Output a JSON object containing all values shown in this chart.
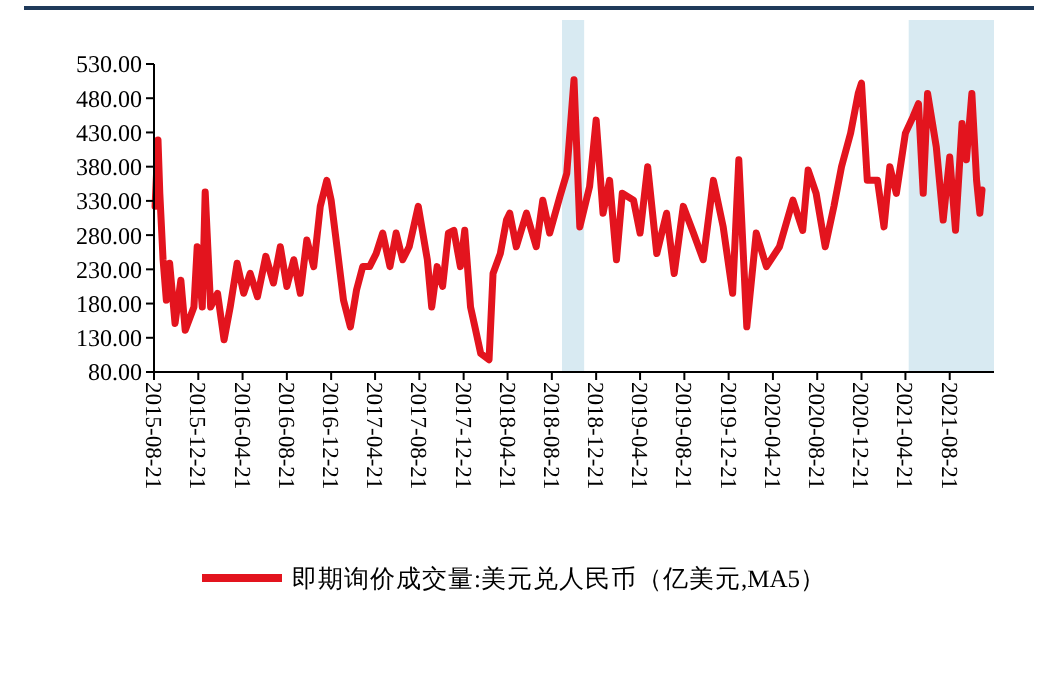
{
  "chart_data": {
    "type": "line",
    "x": [
      "2015-08-24",
      "2015-09-01",
      "2015-09-06",
      "2015-09-15",
      "2015-09-24",
      "2015-10-03",
      "2015-10-18",
      "2015-11-03",
      "2015-11-15",
      "2015-12-09",
      "2015-12-18",
      "2016-01-01",
      "2016-01-09",
      "2016-01-24",
      "2016-02-12",
      "2016-03-01",
      "2016-03-18",
      "2016-04-06",
      "2016-04-24",
      "2016-05-12",
      "2016-06-01",
      "2016-06-24",
      "2016-07-15",
      "2016-08-03",
      "2016-08-21",
      "2016-09-09",
      "2016-09-27",
      "2016-10-15",
      "2016-11-03",
      "2016-11-21",
      "2016-12-09",
      "2016-12-21",
      "2017-01-06",
      "2017-01-24",
      "2017-02-12",
      "2017-03-01",
      "2017-03-18",
      "2017-04-06",
      "2017-04-24",
      "2017-05-12",
      "2017-06-01",
      "2017-06-18",
      "2017-07-06",
      "2017-07-24",
      "2017-08-18",
      "2017-09-12",
      "2017-09-24",
      "2017-10-09",
      "2017-10-24",
      "2017-11-09",
      "2017-11-24",
      "2017-12-12",
      "2017-12-24",
      "2018-01-09",
      "2018-01-21",
      "2018-02-06",
      "2018-03-01",
      "2018-03-12",
      "2018-04-01",
      "2018-04-18",
      "2018-04-27",
      "2018-05-15",
      "2018-06-12",
      "2018-07-09",
      "2018-07-27",
      "2018-08-15",
      "2018-09-12",
      "2018-10-01",
      "2018-10-21",
      "2018-11-06",
      "2018-12-03",
      "2018-12-21",
      "2019-01-09",
      "2019-01-27",
      "2019-02-15",
      "2019-03-03",
      "2019-04-03",
      "2019-04-21",
      "2019-05-12",
      "2019-06-06",
      "2019-07-03",
      "2019-07-24",
      "2019-08-18",
      "2019-09-15",
      "2019-10-12",
      "2019-11-09",
      "2019-12-06",
      "2020-01-01",
      "2020-01-18",
      "2020-02-09",
      "2020-03-06",
      "2020-04-03",
      "2020-05-09",
      "2020-06-15",
      "2020-07-12",
      "2020-07-27",
      "2020-08-18",
      "2020-09-12",
      "2020-10-06",
      "2020-10-27",
      "2020-11-21",
      "2020-12-12",
      "2020-12-21",
      "2021-01-06",
      "2021-02-03",
      "2021-02-21",
      "2021-03-09",
      "2021-03-27",
      "2021-04-21",
      "2021-05-12",
      "2021-05-27",
      "2021-06-09",
      "2021-06-21",
      "2021-07-15",
      "2021-08-03",
      "2021-08-21",
      "2021-09-06",
      "2021-09-24",
      "2021-10-06",
      "2021-10-21",
      "2021-11-03",
      "2021-11-12",
      "2021-11-18"
    ],
    "series": [
      {
        "name": "即期询价成交量:美元兑人民币（亿美元,MA5）",
        "color": "#e3141e",
        "values": [
          322,
          419,
          341,
          244,
          185,
          239,
          151,
          214,
          141,
          175,
          263,
          175,
          343,
          175,
          195,
          127,
          175,
          239,
          195,
          224,
          190,
          249,
          210,
          263,
          205,
          244,
          195,
          273,
          234,
          322,
          360,
          331,
          263,
          185,
          146,
          200,
          234,
          234,
          253,
          283,
          234,
          283,
          244,
          263,
          322,
          244,
          175,
          234,
          205,
          283,
          287,
          234,
          287,
          175,
          146,
          107,
          98,
          224,
          253,
          302,
          312,
          263,
          312,
          263,
          331,
          283,
          336,
          370,
          507,
          292,
          351,
          448,
          312,
          360,
          244,
          341,
          331,
          283,
          380,
          253,
          312,
          224,
          322,
          283,
          244,
          360,
          292,
          195,
          390,
          146,
          283,
          234,
          263,
          331,
          287,
          375,
          341,
          263,
          322,
          380,
          429,
          487,
          502,
          360,
          360,
          292,
          380,
          341,
          429,
          453,
          472,
          341,
          487,
          409,
          302,
          394,
          287,
          443,
          390,
          487,
          360,
          312,
          346
        ]
      }
    ],
    "xlim": [
      "2015-08-21",
      "2021-12-21"
    ],
    "xticks": [
      "2015-08-21",
      "2015-12-21",
      "2016-04-21",
      "2016-08-21",
      "2016-12-21",
      "2017-04-21",
      "2017-08-21",
      "2017-12-21",
      "2018-04-21",
      "2018-08-21",
      "2018-12-21",
      "2019-04-21",
      "2019-08-21",
      "2019-12-21",
      "2020-04-21",
      "2020-08-21",
      "2020-12-21",
      "2021-04-21",
      "2021-08-21"
    ],
    "ylim": [
      80,
      530
    ],
    "yticks": [
      {
        "value": 80,
        "label": "80.00"
      },
      {
        "value": 130,
        "label": "130.00"
      },
      {
        "value": 180,
        "label": "180.00"
      },
      {
        "value": 230,
        "label": "230.00"
      },
      {
        "value": 280,
        "label": "280.00"
      },
      {
        "value": 330,
        "label": "330.00"
      },
      {
        "value": 380,
        "label": "380.00"
      },
      {
        "value": 430,
        "label": "430.00"
      },
      {
        "value": 480,
        "label": "480.00"
      },
      {
        "value": 530,
        "label": "530.00"
      }
    ],
    "bands": [
      {
        "axis": "x",
        "from": "2018-09-18",
        "to": "2018-11-18",
        "color": "#d8eaf2"
      },
      {
        "axis": "x",
        "from": "2021-04-30",
        "to": "2021-12-21",
        "color": "#d8eaf2"
      }
    ],
    "legend": "bottom",
    "grid": false,
    "line_style": "solid",
    "marker": "none"
  }
}
